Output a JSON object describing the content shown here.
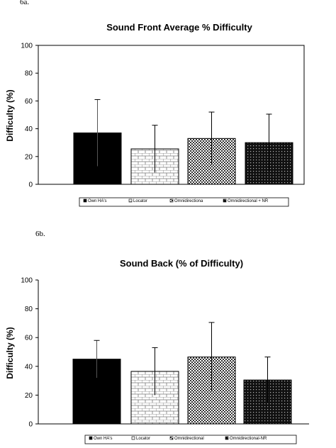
{
  "panel_labels": {
    "top": "6a.",
    "bottom": "6b."
  },
  "chart_data": [
    {
      "type": "bar",
      "title": "Sound Front Average % Difficulty",
      "xlabel": "",
      "ylabel": "Difficulty (%)",
      "ylim": [
        0,
        100
      ],
      "yticks": [
        "0",
        "20",
        "40",
        "60",
        "80",
        "100"
      ],
      "error_bars": true,
      "grid": false,
      "legend_position": "bottom",
      "categories": [
        "Own HA's",
        "Locator",
        "Omnidirectiona",
        "Omnidirectional + NR"
      ],
      "values": [
        37,
        25.5,
        33,
        30
      ],
      "errors": [
        24,
        17,
        19,
        20.5
      ],
      "patterns": [
        "solid",
        "brick",
        "checker",
        "dots"
      ]
    },
    {
      "type": "bar",
      "title": "Sound Back (% of Difficulty)",
      "xlabel": "",
      "ylabel": "Difficulty (%)",
      "ylim": [
        0,
        100
      ],
      "yticks": [
        "0",
        "20",
        "40",
        "60",
        "80",
        "100"
      ],
      "error_bars": true,
      "grid": false,
      "legend_position": "bottom",
      "categories": [
        "Own HA's",
        "Locator",
        "Omnidirectional",
        "Omnidirectional-NR"
      ],
      "values": [
        45,
        36.5,
        46.5,
        30.5
      ],
      "errors": [
        13,
        16.5,
        24,
        16
      ],
      "patterns": [
        "solid",
        "brick",
        "checker",
        "dots"
      ]
    }
  ]
}
